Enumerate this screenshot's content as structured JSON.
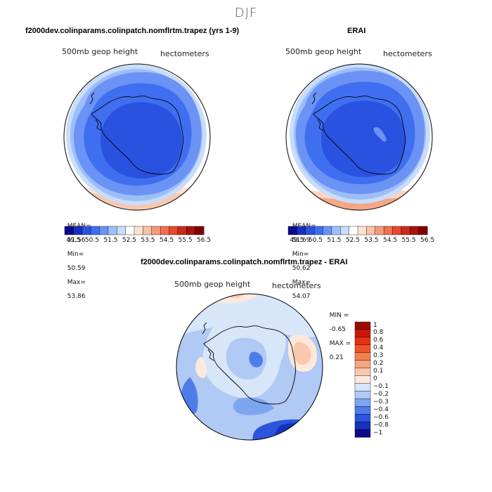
{
  "season": "DJF",
  "panels": [
    {
      "title": "f2000dev.colinparams.colinpatch.nomflrtm.trapez (yrs 1-9)",
      "field": "500mb geop height",
      "units": "hectometers",
      "stats": {
        "mean_label": "MEAN=",
        "mean": "51.56",
        "min_label": "Min=",
        "min": "50.59",
        "max_label": "Max=",
        "max": "53.86"
      }
    },
    {
      "title": "ERAI",
      "field": "500mb geop height",
      "units": "hectometers",
      "stats": {
        "mean_label": "MEAN=",
        "mean": "51.69",
        "min_label": "Min=",
        "min": "50.62",
        "max_label": "Max=",
        "max": "54.07"
      }
    },
    {
      "title": "f2000dev.colinparams.colinpatch.nomflrtm.trapez - ERAI",
      "field": "500mb geop height",
      "units": "hectometers",
      "stats": {
        "min_label": "MIN =",
        "min": "-0.65",
        "max_label": "MAX =",
        "max": "0.21"
      }
    }
  ],
  "colorbar_abs": {
    "tick_labels": [
      "49.5",
      "50.5",
      "51.5",
      "52.5",
      "53.5",
      "54.5",
      "55.5",
      "56.5"
    ],
    "colors": [
      "#0a0a8a",
      "#1a2fc0",
      "#2a52e0",
      "#3f6ff0",
      "#6b93f5",
      "#9ebef8",
      "#c8dcfb",
      "#ffffff",
      "#fde2cf",
      "#f8c2a4",
      "#f59a78",
      "#f07050",
      "#e6492e",
      "#cc2a16",
      "#a6140a",
      "#800000"
    ]
  },
  "colorbar_diff": {
    "tick_labels": [
      "1",
      "0.8",
      "0.6",
      "0.4",
      "0.3",
      "0.2",
      "0.1",
      "0",
      "−0.1",
      "−0.2",
      "−0.3",
      "−0.4",
      "−0.6",
      "−0.8",
      "−1"
    ],
    "colors": [
      "#9e0a05",
      "#c8190a",
      "#e63212",
      "#f0552a",
      "#f5804f",
      "#f8a582",
      "#fbc7ad",
      "#fde9dc",
      "#d8e6fa",
      "#b0c9f5",
      "#7ea5f0",
      "#4d7de8",
      "#2a55dc",
      "#1632bd",
      "#0a0a8a"
    ]
  },
  "chart_data": [
    {
      "type": "heatmap",
      "title": "f2000dev.colinparams.colinpatch.nomflrtm.trapez (yrs 1-9)",
      "variable": "500mb geop height",
      "units": "hectometers",
      "projection": "south polar stereographic",
      "mean": 51.56,
      "min": 50.59,
      "max": 53.86,
      "contour_levels": [
        49.5,
        50.0,
        50.5,
        51.0,
        51.5,
        52.0,
        52.5,
        53.0,
        53.5,
        54.0,
        54.5,
        55.0,
        55.5,
        56.0,
        56.5
      ]
    },
    {
      "type": "heatmap",
      "title": "ERAI",
      "variable": "500mb geop height",
      "units": "hectometers",
      "projection": "south polar stereographic",
      "mean": 51.69,
      "min": 50.62,
      "max": 54.07,
      "contour_levels": [
        49.5,
        50.0,
        50.5,
        51.0,
        51.5,
        52.0,
        52.5,
        53.0,
        53.5,
        54.0,
        54.5,
        55.0,
        55.5,
        56.0,
        56.5
      ]
    },
    {
      "type": "heatmap",
      "title": "f2000dev.colinparams.colinpatch.nomflrtm.trapez - ERAI",
      "variable": "500mb geop height",
      "units": "hectometers",
      "projection": "south polar stereographic",
      "min": -0.65,
      "max": 0.21,
      "contour_levels": [
        -1,
        -0.8,
        -0.6,
        -0.4,
        -0.3,
        -0.2,
        -0.1,
        0,
        0.1,
        0.2,
        0.3,
        0.4,
        0.6,
        0.8,
        1
      ]
    }
  ]
}
